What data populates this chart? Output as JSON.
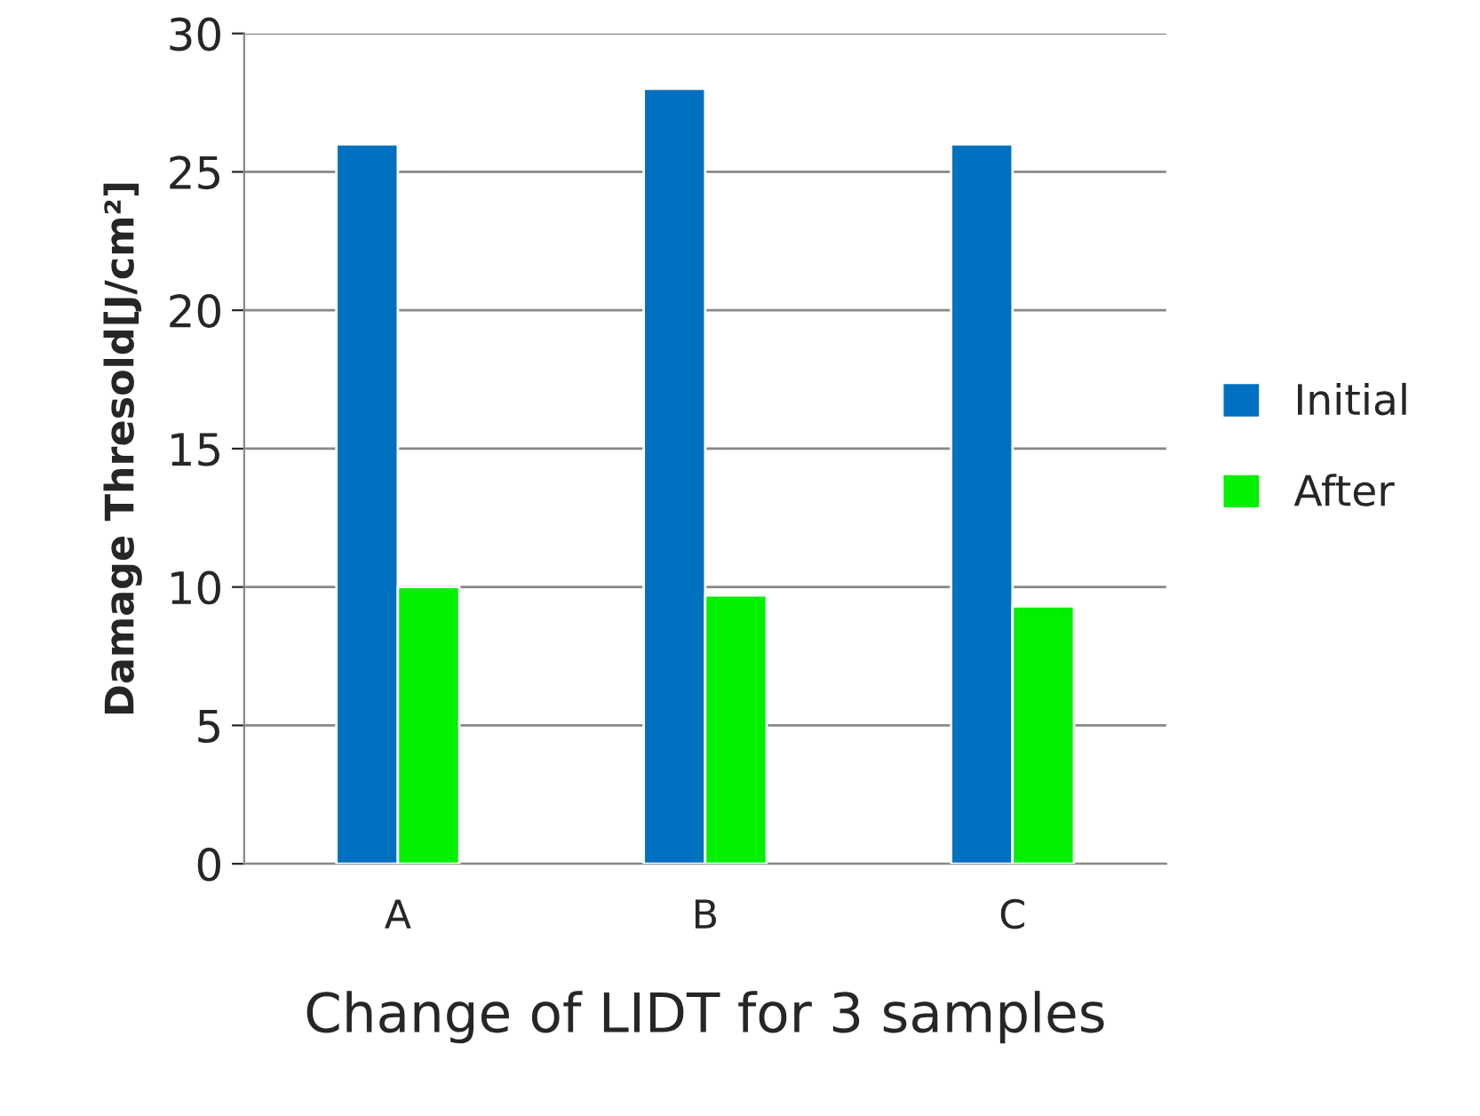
{
  "chart_data": {
    "type": "bar",
    "categories": [
      "A",
      "B",
      "C"
    ],
    "series": [
      {
        "name": "Initial",
        "color": "#0070c0",
        "values": [
          26,
          28,
          26
        ]
      },
      {
        "name": "After",
        "color": "#00f000",
        "values": [
          10,
          9.7,
          9.3
        ]
      }
    ],
    "ylabel": "Damage Thresold[J/cm²]",
    "xlabel": "Change of LIDT for 3 samples",
    "ylim": [
      0,
      30
    ],
    "yticks": [
      0,
      5,
      10,
      15,
      20,
      25,
      30
    ],
    "grid": "y",
    "legend": "right"
  }
}
